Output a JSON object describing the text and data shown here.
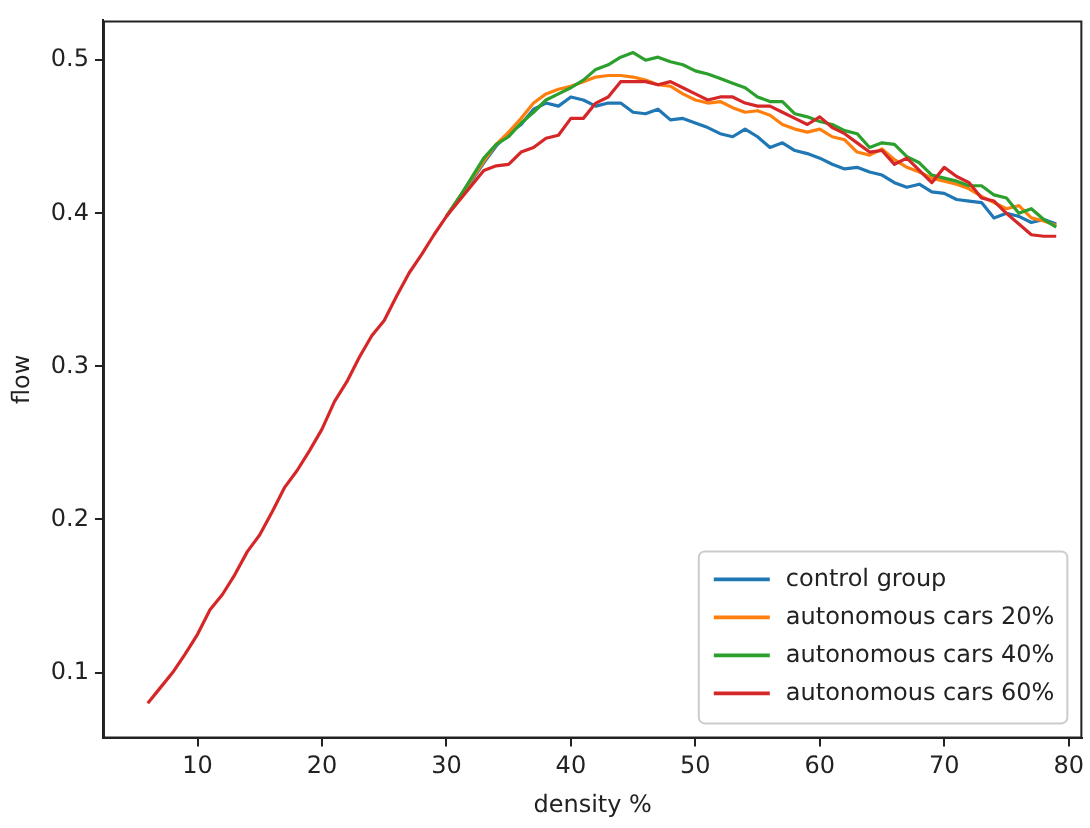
{
  "chart_data": {
    "type": "line",
    "xlabel": "density %",
    "ylabel": "flow",
    "x": [
      6,
      7,
      8,
      9,
      10,
      11,
      12,
      13,
      14,
      15,
      16,
      17,
      18,
      19,
      20,
      21,
      22,
      23,
      24,
      25,
      26,
      27,
      28,
      29,
      30,
      31,
      32,
      33,
      34,
      35,
      36,
      37,
      38,
      39,
      40,
      41,
      42,
      43,
      44,
      45,
      46,
      47,
      48,
      49,
      50,
      51,
      52,
      53,
      54,
      55,
      56,
      57,
      58,
      59,
      60,
      61,
      62,
      63,
      64,
      65,
      66,
      67,
      68,
      69,
      70,
      71,
      72,
      73,
      74,
      75,
      76,
      77,
      78,
      79
    ],
    "series": [
      {
        "name": "control group",
        "color": "#1f77b4",
        "values": [
          null,
          null,
          null,
          null,
          null,
          null,
          null,
          null,
          null,
          null,
          null,
          null,
          null,
          null,
          null,
          null,
          null,
          null,
          null,
          null,
          null,
          null,
          null,
          null,
          0.398,
          0.41,
          0.421,
          0.433,
          0.444,
          0.452,
          0.458,
          0.468,
          0.472,
          0.47,
          0.476,
          0.474,
          0.47,
          0.472,
          0.472,
          0.466,
          0.465,
          0.468,
          0.461,
          0.462,
          0.459,
          0.456,
          0.452,
          0.45,
          0.455,
          0.45,
          0.443,
          0.446,
          0.441,
          0.439,
          0.436,
          0.432,
          0.429,
          0.43,
          0.427,
          0.425,
          0.42,
          0.417,
          0.419,
          0.414,
          0.413,
          0.409,
          0.408,
          0.407,
          0.397,
          0.4,
          0.398,
          0.394,
          0.396,
          0.393
        ]
      },
      {
        "name": "autonomous cars 20%",
        "color": "#ff7f0e",
        "values": [
          null,
          null,
          null,
          null,
          null,
          null,
          null,
          null,
          null,
          null,
          null,
          null,
          null,
          null,
          null,
          null,
          null,
          null,
          null,
          null,
          null,
          null,
          null,
          null,
          0.398,
          0.41,
          0.422,
          0.434,
          0.445,
          0.453,
          0.462,
          0.472,
          0.478,
          0.481,
          0.483,
          0.486,
          0.489,
          0.49,
          0.49,
          0.489,
          0.487,
          0.484,
          0.483,
          0.478,
          0.474,
          0.472,
          0.473,
          0.469,
          0.466,
          0.467,
          0.464,
          0.458,
          0.455,
          0.453,
          0.455,
          0.45,
          0.448,
          0.44,
          0.438,
          0.442,
          0.435,
          0.43,
          0.427,
          0.423,
          0.421,
          0.419,
          0.416,
          0.411,
          0.407,
          0.403,
          0.405,
          0.397,
          0.395,
          0.392
        ]
      },
      {
        "name": "autonomous cars 40%",
        "color": "#2ca02c",
        "values": [
          null,
          null,
          null,
          null,
          null,
          null,
          null,
          null,
          null,
          null,
          null,
          null,
          null,
          null,
          null,
          null,
          null,
          null,
          null,
          null,
          null,
          null,
          null,
          null,
          0.398,
          0.41,
          0.423,
          0.436,
          0.445,
          0.45,
          0.459,
          0.466,
          0.474,
          0.478,
          0.482,
          0.487,
          0.494,
          0.497,
          0.502,
          0.505,
          0.5,
          0.502,
          0.499,
          0.497,
          0.493,
          0.491,
          0.488,
          0.485,
          0.482,
          0.476,
          0.473,
          0.473,
          0.465,
          0.463,
          0.46,
          0.458,
          0.454,
          0.452,
          0.443,
          0.446,
          0.445,
          0.437,
          0.433,
          0.425,
          0.423,
          0.421,
          0.418,
          0.418,
          0.412,
          0.41,
          0.4,
          0.403,
          0.396,
          0.391
        ]
      },
      {
        "name": "autonomous cars 60%",
        "color": "#d62728",
        "values": [
          0.08,
          0.09,
          0.1,
          0.112,
          0.125,
          0.141,
          0.151,
          0.164,
          0.179,
          0.19,
          0.205,
          0.221,
          0.232,
          0.245,
          0.259,
          0.277,
          0.29,
          0.306,
          0.32,
          0.33,
          0.346,
          0.361,
          0.373,
          0.386,
          0.398,
          0.408,
          0.418,
          0.428,
          0.431,
          0.432,
          0.44,
          0.443,
          0.449,
          0.451,
          0.462,
          0.462,
          0.472,
          0.476,
          0.486,
          0.486,
          0.486,
          0.484,
          0.486,
          0.482,
          0.478,
          0.474,
          0.476,
          0.476,
          0.472,
          0.47,
          0.47,
          0.466,
          0.462,
          0.458,
          0.463,
          0.456,
          0.452,
          0.446,
          0.44,
          0.441,
          0.432,
          0.436,
          0.428,
          0.42,
          0.43,
          0.424,
          0.42,
          0.41,
          0.408,
          0.4,
          0.393,
          0.386,
          0.385,
          0.385
        ]
      }
    ],
    "xlim": [
      2.4,
      81.1
    ],
    "xticks": [
      10,
      20,
      30,
      40,
      50,
      60,
      70,
      80
    ],
    "ylim": [
      0.057,
      0.526
    ],
    "yticks": [
      0.1,
      0.2,
      0.3,
      0.4,
      0.5
    ],
    "grid": false,
    "legend": "bottom right",
    "marker": "none",
    "line_style": "solid"
  }
}
